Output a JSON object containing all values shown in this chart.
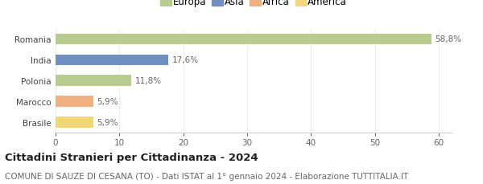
{
  "categories": [
    "Brasile",
    "Marocco",
    "Polonia",
    "India",
    "Romania"
  ],
  "values": [
    5.9,
    5.9,
    11.8,
    17.6,
    58.8
  ],
  "labels": [
    "5,9%",
    "5,9%",
    "11,8%",
    "17,6%",
    "58,8%"
  ],
  "colors": [
    "#f0d878",
    "#f0b080",
    "#b8cc90",
    "#7090c0",
    "#b8cc90"
  ],
  "continent_colors": [
    "#b8cc90",
    "#7090c0",
    "#f0b080",
    "#f0d878"
  ],
  "continent_labels": [
    "Europa",
    "Asia",
    "Africa",
    "America"
  ],
  "title": "Cittadini Stranieri per Cittadinanza - 2024",
  "subtitle": "COMUNE DI SAUZE DI CESANA (TO) - Dati ISTAT al 1° gennaio 2024 - Elaborazione TUTTITALIA.IT",
  "xlim": [
    0,
    62
  ],
  "xticks": [
    0,
    10,
    20,
    30,
    40,
    50,
    60
  ],
  "background_color": "#ffffff",
  "bar_height": 0.52,
  "title_fontsize": 9.5,
  "subtitle_fontsize": 7.5,
  "label_fontsize": 7.5,
  "legend_fontsize": 8.5,
  "tick_fontsize": 7.5
}
